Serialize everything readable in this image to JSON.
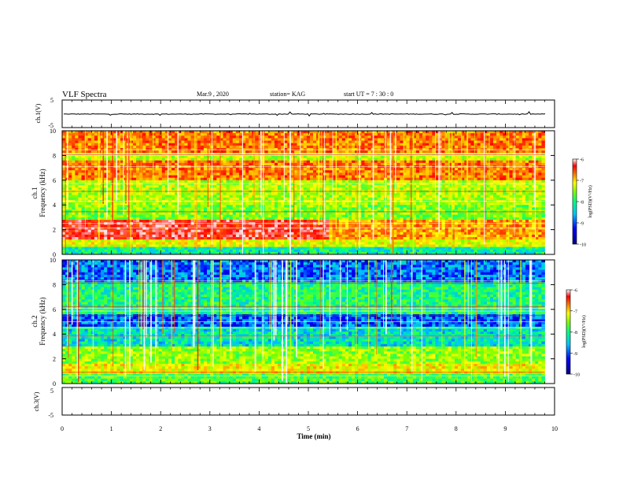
{
  "header": {
    "title": "VLF Spectra",
    "date": "Mar.9 , 2020",
    "station": "station= KAG",
    "start": "start UT = 7 : 30 : 0"
  },
  "chart_data": [
    {
      "type": "line",
      "panel": "waveform-ch1",
      "ylabel": "ch.1(V)",
      "ylim": [
        -5,
        5
      ],
      "yticks": [
        "5",
        "-5"
      ],
      "xlim": [
        0,
        10
      ],
      "series": [
        {
          "values": [
            -0.1,
            -0.1
          ]
        }
      ]
    },
    {
      "type": "heatmap",
      "panel": "spectrogram-ch1",
      "ylabel_line1": "ch.1",
      "ylabel_line2": "Frequency (kHz)",
      "ylim": [
        0,
        10
      ],
      "yticks": [
        "0",
        "2",
        "4",
        "6",
        "8",
        "10"
      ],
      "xlim": [
        0,
        9.8
      ],
      "colorbar": {
        "label": "log(PSD)(V²/Hz)",
        "range": [
          -10,
          -6
        ],
        "ticks": [
          "-6",
          "-7",
          "-8",
          "-9",
          "-10"
        ]
      }
    },
    {
      "type": "heatmap",
      "panel": "spectrogram-ch2",
      "ylabel_line1": "ch.2",
      "ylabel_line2": "Frequency (kHz)",
      "ylim": [
        0,
        10
      ],
      "yticks": [
        "0",
        "2",
        "4",
        "6",
        "8",
        "10"
      ],
      "xlim": [
        0,
        9.8
      ],
      "colorbar": {
        "label": "log(PSD)(V²/Hz)",
        "range": [
          -10,
          -6
        ],
        "ticks": [
          "-6",
          "-7",
          "-8",
          "-9",
          "-10"
        ]
      }
    },
    {
      "type": "line",
      "panel": "waveform-ch3",
      "ylabel": "ch.3(V)",
      "ylim": [
        -5,
        5
      ],
      "yticks": [
        "5",
        "-5"
      ],
      "xlim": [
        0,
        10
      ],
      "series": []
    }
  ],
  "xaxis": {
    "label": "Time (min)",
    "range": [
      0,
      10
    ],
    "ticks": [
      "0",
      "1",
      "2",
      "3",
      "4",
      "5",
      "6",
      "7",
      "8",
      "9",
      "10"
    ]
  },
  "colors": {
    "scale": [
      "#00007f",
      "#0000ff",
      "#00bfff",
      "#00ff7f",
      "#7fff00",
      "#ffff00",
      "#ff7f00",
      "#ff0000",
      "#ffffff"
    ]
  }
}
